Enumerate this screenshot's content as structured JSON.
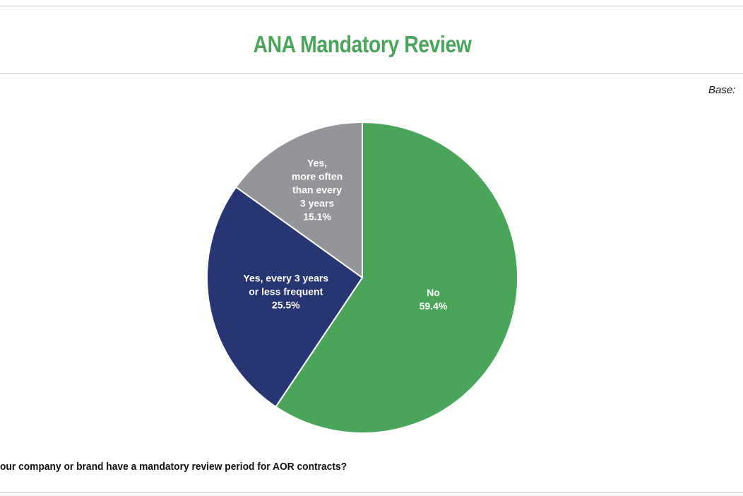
{
  "title": "ANA Mandatory Review",
  "base_label": "Base:",
  "question": "our company or brand have a mandatory review period for AOR contracts?",
  "chart_data": {
    "type": "pie",
    "title": "ANA Mandatory Review",
    "start_angle_deg": 0,
    "direction": "clockwise",
    "slices": [
      {
        "label_lines": [
          "No"
        ],
        "value": 59.4,
        "value_label": "59.4%",
        "color": "#4aa55a"
      },
      {
        "label_lines": [
          "Yes, every 3 years",
          "or less frequent"
        ],
        "value": 25.5,
        "value_label": "25.5%",
        "color": "#273673"
      },
      {
        "label_lines": [
          "Yes,",
          "more often",
          "than every",
          "3 years"
        ],
        "value": 15.1,
        "value_label": "15.1%",
        "color": "#939598"
      }
    ]
  }
}
